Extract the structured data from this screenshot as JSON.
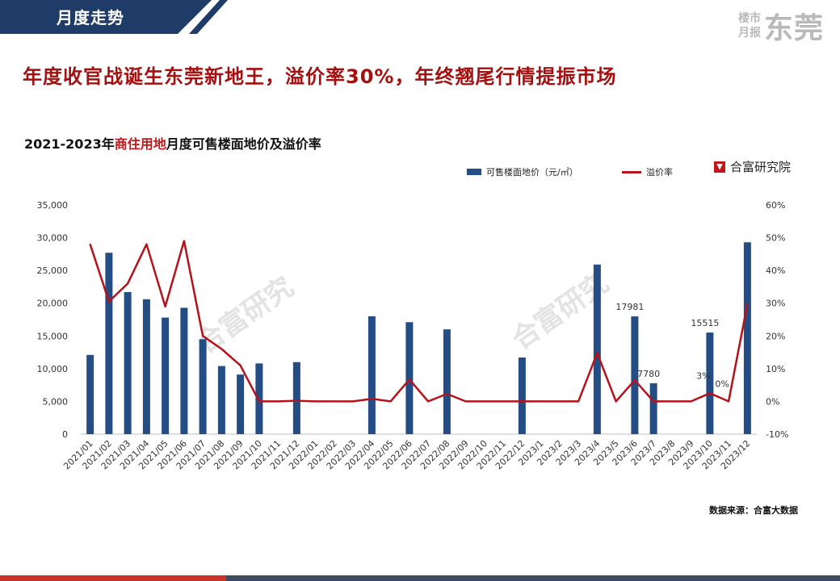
{
  "header": {
    "section_title": "月度走势",
    "brand_small_1": "楼市",
    "brand_small_2": "月报",
    "brand_big": "东莞"
  },
  "headline": "年度收官战诞生东莞新地王，溢价率30%，年终翘尾行情提振市场",
  "chart_title": {
    "prefix": "2021-2023年",
    "highlight": "商住用地",
    "suffix": "月度可售楼面地价及溢价率"
  },
  "logo_text": "合富研究院",
  "source_text": "数据来源：合富大数据",
  "watermark": "合富研究",
  "colors": {
    "bar": "#244d85",
    "line": "#b5121b",
    "header_band": "#1f3b68",
    "headline": "#a3100f"
  },
  "chart_data": {
    "type": "bar",
    "categories": [
      "2021/01",
      "2021/02",
      "2021/03",
      "2021/04",
      "2021/05",
      "2021/06",
      "2021/07",
      "2021/08",
      "2021/09",
      "2021/10",
      "2021/11",
      "2021/12",
      "2022/01",
      "2022/02",
      "2022/03",
      "2022/04",
      "2022/05",
      "2022/06",
      "2022/07",
      "2022/08",
      "2022/09",
      "2022/10",
      "2022/11",
      "2022/12",
      "2023/1",
      "2023/2",
      "2023/3",
      "2023/4",
      "2023/5",
      "2023/6",
      "2023/7",
      "2023/8",
      "2023/9",
      "2023/10",
      "2023/11",
      "2023/12"
    ],
    "series": [
      {
        "name": "可售楼面地价（元/㎡）",
        "type": "bar",
        "axis": "left",
        "values": [
          12100,
          27700,
          21700,
          20600,
          17800,
          19300,
          14500,
          10400,
          9100,
          10800,
          0,
          11000,
          0,
          0,
          0,
          18000,
          0,
          17100,
          0,
          16000,
          0,
          0,
          0,
          11700,
          0,
          0,
          0,
          25900,
          0,
          17981,
          7780,
          0,
          0,
          15515,
          0,
          29300
        ]
      },
      {
        "name": "溢价率",
        "type": "line",
        "axis": "right",
        "values": [
          48,
          30.5,
          36,
          48,
          29,
          49,
          20,
          16,
          11,
          0,
          0,
          0.2,
          0,
          0,
          0,
          0.8,
          0,
          6.7,
          0,
          2.3,
          0,
          0,
          0,
          0,
          0,
          0,
          0,
          14.8,
          0,
          6.5,
          0,
          0,
          0,
          2.5,
          0,
          29.8
        ]
      }
    ],
    "y_left": {
      "min": 0,
      "max": 35000,
      "ticks": [
        "0",
        "5,000",
        "10,000",
        "15,000",
        "20,000",
        "25,000",
        "30,000",
        "35,000"
      ]
    },
    "y_right": {
      "min": -10,
      "max": 60,
      "ticks": [
        "-10%",
        "0%",
        "10%",
        "20%",
        "30%",
        "40%",
        "50%",
        "60%"
      ]
    },
    "bar_labels": [
      {
        "index": 29,
        "text": "17981"
      },
      {
        "index": 30,
        "text": "7780"
      },
      {
        "index": 33,
        "text": "15515"
      }
    ],
    "line_labels": [
      {
        "index": 33,
        "text": "3%"
      },
      {
        "index": 34,
        "text": "0%"
      }
    ],
    "legend": [
      "可售楼面地价（元/㎡）",
      "溢价率"
    ],
    "legend_position": "top-right"
  }
}
